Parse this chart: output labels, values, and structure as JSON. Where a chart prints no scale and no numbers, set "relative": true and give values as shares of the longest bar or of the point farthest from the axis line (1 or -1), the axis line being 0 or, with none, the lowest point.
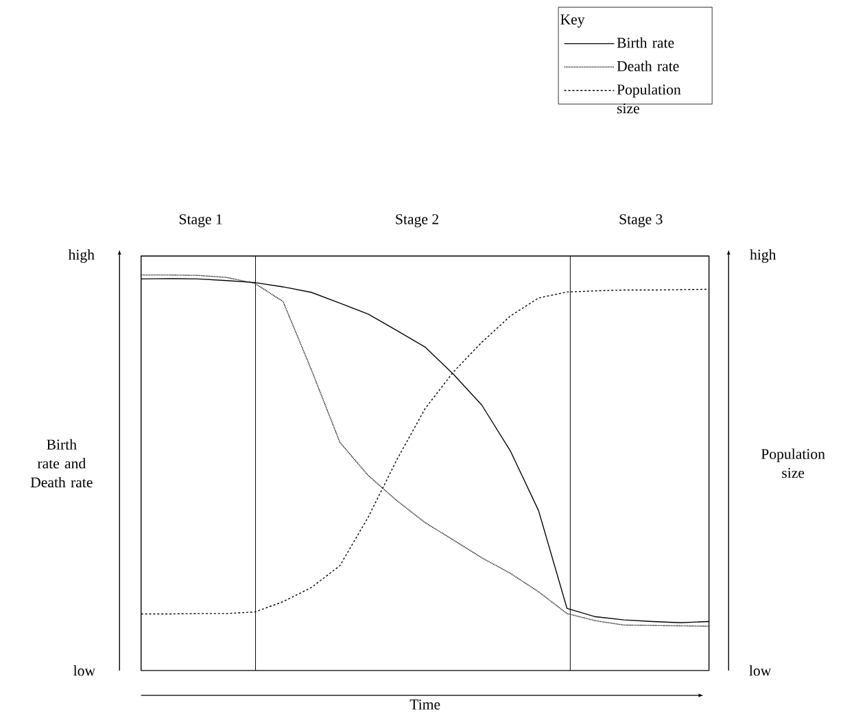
{
  "chart_data": {
    "type": "line",
    "relative": true,
    "xlabel": "Time",
    "ylabel": "Birth rate and Death rate",
    "y2label": "Population size",
    "legend_title": "Key",
    "categories": [
      null,
      null,
      null,
      null,
      null,
      null,
      null,
      null,
      null,
      null,
      null,
      null,
      null,
      null,
      null,
      null,
      null,
      null,
      null,
      null,
      null
    ],
    "series": [
      {
        "name": "Birth rate",
        "color": "#000000",
        "line_style": "solid",
        "values": [
          0.99,
          0.991,
          0.99,
          0.986,
          0.981,
          0.97,
          0.956,
          0.929,
          0.901,
          0.86,
          0.818,
          0.749,
          0.671,
          0.556,
          0.404,
          0.157,
          0.136,
          0.128,
          0.124,
          0.121,
          0.124
        ]
      },
      {
        "name": "Death rate",
        "color": "#000000",
        "line_style": "dotted",
        "values": [
          1,
          1,
          0.999,
          0.994,
          0.979,
          0.933,
          0.76,
          0.577,
          0.493,
          0.43,
          0.374,
          0.33,
          0.285,
          0.246,
          0.199,
          0.144,
          0.126,
          0.115,
          0.114,
          0.113,
          0.112
        ]
      },
      {
        "name": "Population size",
        "color": "#000000",
        "line_style": "dashed",
        "values": [
          0.143,
          0.143,
          0.144,
          0.144,
          0.148,
          0.174,
          0.21,
          0.265,
          0.388,
          0.532,
          0.662,
          0.755,
          0.83,
          0.896,
          0.942,
          0.957,
          0.96,
          0.962,
          0.962,
          0.963,
          0.964
        ]
      }
    ],
    "annotations": [
      "high",
      "low",
      "high",
      "low",
      "Stage 1",
      "Stage 2",
      "Stage 3"
    ],
    "legend": "top right",
    "grid": false
  }
}
